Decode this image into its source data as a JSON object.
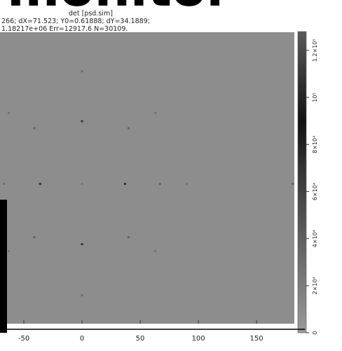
{
  "chart_data": {
    "type": "heatmap",
    "title": "monitor",
    "subtitle": "det [psd.sim]",
    "stats_line_1": "266; dX=71.523; Y0=0.61888; dY=34.1889;",
    "stats_line_2": "1.18217e+06 Err=12917.6 N=30109.",
    "xlim": [
      -70.5,
      182.5
    ],
    "xticks": [
      -50,
      0,
      50,
      100,
      150
    ],
    "ylim": [
      -120.5,
      130.7
    ],
    "x": [
      0,
      0,
      0,
      0,
      0,
      -41,
      40,
      -41,
      40,
      -63,
      63,
      -63,
      63,
      -36,
      37,
      67,
      90,
      -67,
      181
    ],
    "y": [
      97,
      54,
      0,
      -52,
      -96,
      48,
      48,
      -46,
      -46,
      61,
      61,
      -58,
      -58,
      0,
      0,
      0,
      0,
      0,
      0
    ],
    "z": [
      30000,
      80000,
      20000,
      80000,
      30000,
      40000,
      40000,
      40000,
      40000,
      25000,
      25000,
      25000,
      25000,
      85000,
      85000,
      40000,
      20000,
      30000,
      40000
    ],
    "clim": [
      0,
      128000
    ],
    "cticks": [
      {
        "value": 0,
        "label": "0"
      },
      {
        "value": 20000,
        "label": "2×10⁴"
      },
      {
        "value": 40000,
        "label": "4×10⁴"
      },
      {
        "value": 60000,
        "label": "6×10⁴"
      },
      {
        "value": 80000,
        "label": "8×10⁴"
      },
      {
        "value": 100000,
        "label": "10⁵"
      },
      {
        "value": 120000,
        "label": "1.2×10⁵"
      }
    ]
  }
}
